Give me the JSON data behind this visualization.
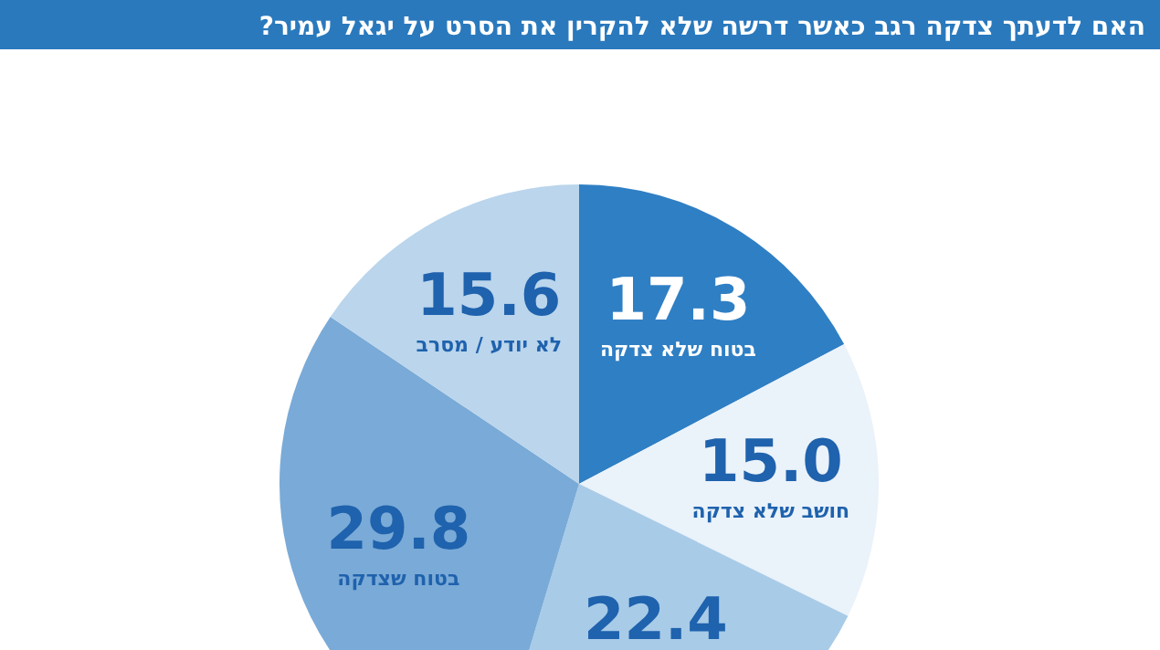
{
  "chart_data": {
    "type": "pie",
    "title": "האם לדעתך צדקה רגב כאשר דרשה שלא להקרין את הסרט על יגאל עמיר?",
    "categories": [
      "בטוח שלא צדקה",
      "חושב שלא צדקה",
      null,
      "בטוח שצדקה",
      "לא יודע / מסרב"
    ],
    "values": [
      17.3,
      15.0,
      22.4,
      29.8,
      15.6
    ],
    "colors": [
      "#2f7fc4",
      "#eaf2fa",
      "#a8cbe8",
      "#7aaad7",
      "#bad5ec"
    ],
    "value_labels": [
      "17.3",
      "15.0",
      "22.4",
      "29.8",
      "15.6"
    ]
  }
}
